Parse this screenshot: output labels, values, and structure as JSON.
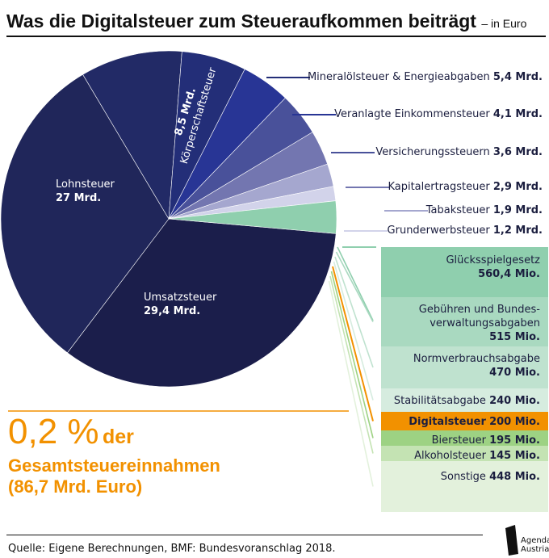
{
  "title": "Was die Digitalsteuer zum Steueraufkommen beiträgt",
  "subtitle": "– in Euro",
  "source": "Quelle: Eigene Berechnungen, BMF: Bundesvoranschlag 2018.",
  "logo": {
    "line1": "Agenda",
    "line2": "Austria"
  },
  "highlight": {
    "value": "0,2 %",
    "word": "der",
    "line2": "Gesamtsteuereinnahmen",
    "line3": "(86,7 Mrd. Euro)"
  },
  "colors": {
    "accent": "#f29100",
    "dark": "#1b1e4b",
    "green": "#8fcfae"
  },
  "chart_data": {
    "type": "pie",
    "unit": "Mrd. Euro",
    "total": 86.7,
    "slices": [
      {
        "name": "Umsatzsteuer",
        "value": 29.4,
        "label": "29,4 Mrd.",
        "color": "#1b1e4b"
      },
      {
        "name": "Lohnsteuer",
        "value": 27.0,
        "label": "27 Mrd.",
        "color": "#20265a"
      },
      {
        "name": "Körperschaftsteuer",
        "value": 8.5,
        "label": "8,5 Mrd.",
        "color": "#222a66"
      },
      {
        "name": "Mineralölsteuer & Energieabgaben",
        "value": 5.4,
        "label": "5,4 Mrd.",
        "color": "#232e78"
      },
      {
        "name": "Veranlagte Einkommensteuer",
        "value": 4.1,
        "label": "4,1 Mrd.",
        "color": "#283595"
      },
      {
        "name": "Versicherungssteuern",
        "value": 3.6,
        "label": "3,6 Mrd.",
        "color": "#49519a"
      },
      {
        "name": "Kapitalertragsteuer",
        "value": 2.9,
        "label": "2,9 Mrd.",
        "color": "#7376b0"
      },
      {
        "name": "Tabaksteuer",
        "value": 1.9,
        "label": "1,9 Mrd.",
        "color": "#a5a7cf"
      },
      {
        "name": "Grunderwerbsteuer",
        "value": 1.2,
        "label": "1,2 Mrd.",
        "color": "#d2d3ea"
      },
      {
        "name": "Sonstige Steuern",
        "value": 2.7,
        "label": "",
        "color": "#8fcfae"
      }
    ],
    "breakdown": {
      "unit": "Mio. Euro",
      "items": [
        {
          "name": "Glücksspielgesetz",
          "value": 560.4,
          "label": "560,4 Mio.",
          "color": "#8fcfae"
        },
        {
          "name": "Gebühren und Bundesverwaltungsabgaben",
          "line1": "Gebühren und Bundes-",
          "line2": "verwaltungsabgaben",
          "value": 515,
          "label": "515 Mio.",
          "color": "#a9d9c0"
        },
        {
          "name": "Normverbrauchsabgabe",
          "value": 470,
          "label": "470 Mio.",
          "color": "#bfe2cf"
        },
        {
          "name": "Stabilitätsabgabe",
          "value": 240,
          "label": "240 Mio.",
          "color": "#d6ecdf"
        },
        {
          "name": "Digitalsteuer",
          "value": 200,
          "label": "200 Mio.",
          "color": "#f29100"
        },
        {
          "name": "Biersteuer",
          "value": 195,
          "label": "195 Mio.",
          "color": "#9dd283"
        },
        {
          "name": "Alkoholsteuer",
          "value": 145,
          "label": "145 Mio.",
          "color": "#c4e3b3"
        },
        {
          "name": "Sonstige",
          "value": 448,
          "label": "448 Mio.",
          "color": "#e3f1dc"
        }
      ]
    }
  }
}
